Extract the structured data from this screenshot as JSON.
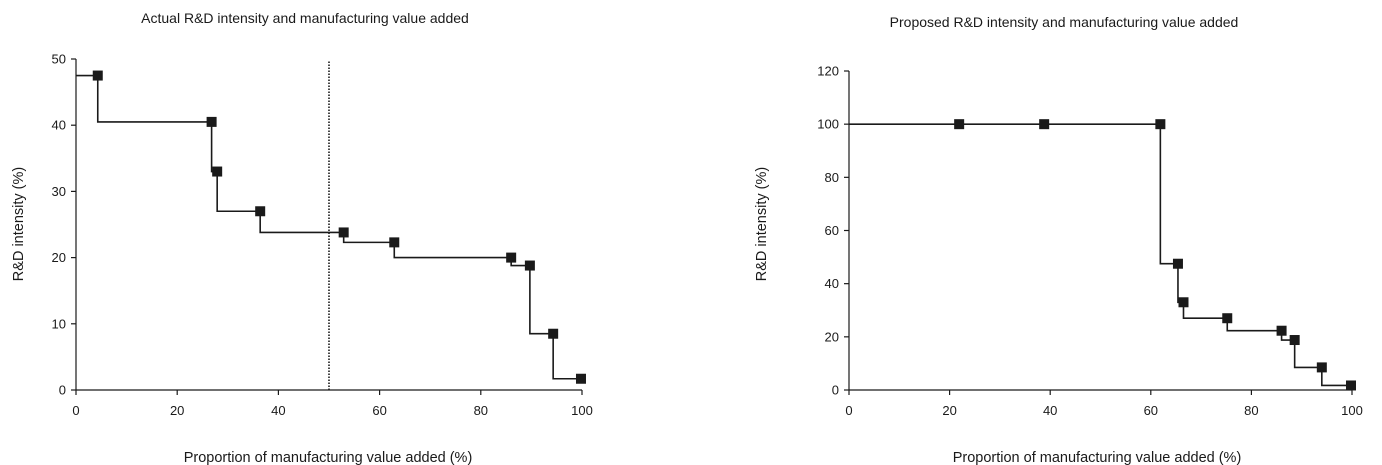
{
  "chart_data": [
    {
      "type": "line",
      "title": "Actual R&D intensity and manufacturing value added",
      "xlabel": "Proportion of manufacturing value added (%)",
      "ylabel": "R&D intensity (%)",
      "xlim": [
        0,
        100
      ],
      "ylim": [
        0,
        50
      ],
      "xticks": [
        0,
        20,
        40,
        60,
        80,
        100
      ],
      "yticks": [
        0,
        10,
        20,
        30,
        40,
        50
      ],
      "step": true,
      "reference_line_x": 50,
      "points": [
        {
          "x": 4.3,
          "y": 47.5
        },
        {
          "x": 26.8,
          "y": 40.5
        },
        {
          "x": 27.9,
          "y": 33.0
        },
        {
          "x": 36.4,
          "y": 27.0
        },
        {
          "x": 52.9,
          "y": 23.8
        },
        {
          "x": 62.9,
          "y": 22.3
        },
        {
          "x": 86.0,
          "y": 20.0
        },
        {
          "x": 89.7,
          "y": 18.8
        },
        {
          "x": 94.3,
          "y": 8.5
        },
        {
          "x": 99.8,
          "y": 1.7
        }
      ]
    },
    {
      "type": "line",
      "title": "Proposed R&D intensity and manufacturing value added",
      "xlabel": "Proportion of manufacturing value added (%)",
      "ylabel": "R&D intensity (%)",
      "xlim": [
        0,
        100
      ],
      "ylim": [
        0,
        120
      ],
      "xticks": [
        0,
        20,
        40,
        60,
        80,
        100
      ],
      "yticks": [
        0,
        20,
        40,
        60,
        80,
        100,
        120
      ],
      "step": true,
      "points": [
        {
          "x": 21.9,
          "y": 100
        },
        {
          "x": 38.8,
          "y": 100
        },
        {
          "x": 61.9,
          "y": 100
        },
        {
          "x": 65.4,
          "y": 47.5
        },
        {
          "x": 66.5,
          "y": 33.0
        },
        {
          "x": 75.2,
          "y": 27.0
        },
        {
          "x": 86.0,
          "y": 22.3
        },
        {
          "x": 88.6,
          "y": 18.8
        },
        {
          "x": 94.0,
          "y": 8.5
        },
        {
          "x": 99.8,
          "y": 1.7
        }
      ]
    }
  ]
}
